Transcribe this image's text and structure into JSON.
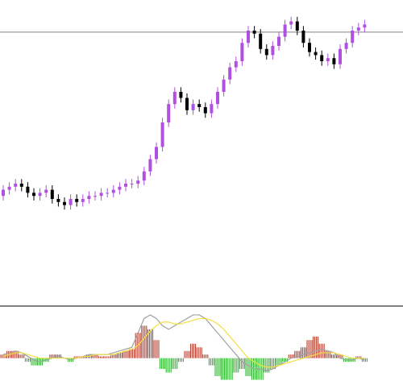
{
  "chart_data": [
    {
      "type": "candlestick",
      "ylim": [
        0,
        100
      ],
      "hline": 89.5,
      "hline_color": "#808080",
      "up_color": "#b050e0",
      "down_color": "#000000",
      "opens": [
        36,
        38,
        39,
        40,
        39,
        37,
        36,
        37,
        38,
        35,
        34,
        33,
        35,
        34,
        35,
        36,
        36,
        37,
        37,
        38,
        39,
        40,
        40,
        41,
        44,
        48,
        52,
        60,
        66,
        70,
        68,
        64,
        66,
        65,
        63,
        66,
        70,
        74,
        78,
        80,
        86,
        90,
        89,
        84,
        82,
        85,
        88,
        92,
        93,
        90,
        86,
        83,
        82,
        80,
        81,
        79,
        84,
        86,
        90,
        91
      ],
      "highs": [
        39.5,
        40.5,
        41.5,
        41.5,
        40.5,
        38.5,
        38.5,
        39.5,
        39.5,
        36.5,
        35.5,
        36.5,
        36.5,
        36.5,
        37.5,
        37.5,
        38.5,
        38.5,
        39.5,
        40.5,
        41.5,
        41.5,
        42.5,
        45.5,
        49.5,
        53.5,
        61.5,
        67.5,
        71.5,
        71.5,
        69.5,
        67.5,
        67.5,
        66.5,
        67.5,
        71.5,
        75.5,
        79.5,
        81.5,
        87.5,
        91.5,
        91.5,
        90.5,
        85.5,
        86.5,
        89.5,
        93.5,
        94.5,
        94.5,
        91.5,
        87.5,
        84.5,
        83.5,
        82.5,
        82.5,
        85.5,
        87.5,
        91.5,
        92.5,
        93.5
      ],
      "lows": [
        34.5,
        36.5,
        37.5,
        37.5,
        35.5,
        34.5,
        34.5,
        35.5,
        33.5,
        32.5,
        31.5,
        31.5,
        32.5,
        32.5,
        33.5,
        34.5,
        34.5,
        35.5,
        35.5,
        36.5,
        37.5,
        38.5,
        38.5,
        39.5,
        42.5,
        46.5,
        50.5,
        58.5,
        64.5,
        66.5,
        62.5,
        62.5,
        63.5,
        61.5,
        61.5,
        64.5,
        68.5,
        72.5,
        76.5,
        78.5,
        84.5,
        87.5,
        82.5,
        80.5,
        80.5,
        83.5,
        86.5,
        90.5,
        88.5,
        84.5,
        81.5,
        80.5,
        78.5,
        78.5,
        77.5,
        77.5,
        82.5,
        84.5,
        88.5,
        89.5
      ],
      "closes": [
        38,
        39,
        40,
        39,
        37,
        36,
        37,
        38,
        35,
        34,
        33,
        35,
        34,
        35,
        36,
        36,
        37,
        37,
        38,
        39,
        40,
        40,
        41,
        44,
        48,
        52,
        60,
        66,
        70,
        68,
        64,
        66,
        65,
        63,
        66,
        70,
        74,
        78,
        80,
        86,
        90,
        89,
        84,
        82,
        85,
        88,
        92,
        93,
        90,
        86,
        83,
        82,
        80,
        81,
        79,
        84,
        86,
        90,
        91,
        92
      ]
    },
    {
      "type": "macd",
      "ylim": [
        -7,
        14
      ],
      "up_color": "#b03020",
      "down_color": "#20b020",
      "values": [
        1,
        2,
        2,
        1,
        -1,
        -2,
        -2,
        -1,
        1,
        1,
        0,
        -1,
        0.5,
        0.5,
        1,
        1,
        0.5,
        0.5,
        1,
        1.5,
        2,
        2.5,
        7,
        9,
        8,
        5,
        -3,
        -4,
        -3,
        -1,
        2,
        4,
        3,
        1,
        -2,
        -5,
        -6,
        -6,
        -4,
        -3,
        -5,
        -6,
        -6,
        -4,
        -3,
        -2,
        -1,
        1,
        2,
        3,
        5,
        6,
        4,
        2,
        1,
        1,
        -1,
        -1,
        0.5,
        -1
      ],
      "series": [
        {
          "color": "#a0a0a0",
          "values": [
            1,
            1.5,
            2,
            1.5,
            0.5,
            -0.5,
            -1,
            -0.5,
            0,
            0.5,
            0,
            -0.5,
            0,
            0.5,
            1,
            1,
            1,
            1,
            1.5,
            2,
            2.5,
            3,
            7,
            11,
            12,
            11,
            9,
            8,
            9,
            10,
            11,
            12,
            12,
            11,
            9,
            7,
            5,
            3,
            1,
            -1,
            -2,
            -3,
            -3,
            -3.5,
            -3,
            -2,
            -1,
            0,
            0.5,
            1,
            1.5,
            2,
            2.5,
            2,
            1.5,
            0,
            -0.5,
            -0.5,
            0,
            -0.5
          ]
        },
        {
          "color": "#f0e040",
          "values": [
            0.5,
            1,
            1.5,
            1.5,
            1,
            0.5,
            0,
            0,
            0,
            0,
            0,
            0,
            0,
            0.5,
            0.5,
            1,
            1,
            1,
            1,
            1.5,
            2,
            2.5,
            3.5,
            5.5,
            7.5,
            9,
            10,
            10,
            9.5,
            9.5,
            10,
            10.5,
            11,
            11,
            10.5,
            9.5,
            8,
            6,
            4,
            2,
            0,
            -1,
            -2,
            -2.5,
            -2.5,
            -2,
            -1.5,
            -1,
            -0.5,
            0,
            0.5,
            1,
            1.5,
            1.5,
            1.5,
            1,
            0.5,
            0,
            0,
            0
          ]
        }
      ]
    }
  ]
}
